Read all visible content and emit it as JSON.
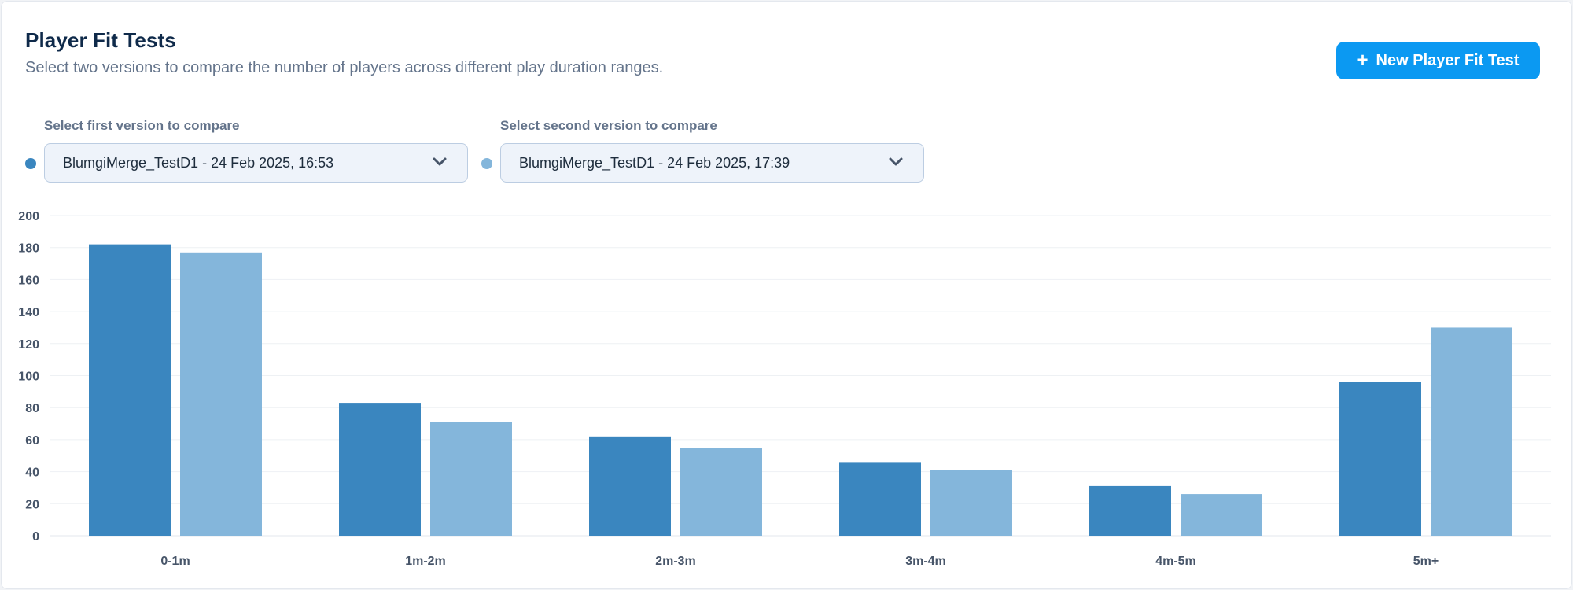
{
  "header": {
    "title": "Player Fit Tests",
    "subtitle": "Select two versions to compare the number of players across different play duration ranges.",
    "new_button_label": "New Player Fit Test",
    "new_button_icon": "plus-icon"
  },
  "selectors": {
    "first": {
      "label": "Select first version to compare",
      "value": "BlumgiMerge_TestD1 - 24 Feb 2025, 16:53",
      "color": "#3a86bf"
    },
    "second": {
      "label": "Select second version to compare",
      "value": "BlumgiMerge_TestD1 - 24 Feb 2025, 17:39",
      "color": "#84b6db"
    }
  },
  "colors": {
    "accent": "#0b99f2",
    "series1": "#3a86bf",
    "series2": "#84b6db"
  },
  "chart_data": {
    "type": "bar",
    "title": "",
    "xlabel": "",
    "ylabel": "",
    "categories": [
      "0-1m",
      "1m-2m",
      "2m-3m",
      "3m-4m",
      "4m-5m",
      "5m+"
    ],
    "series": [
      {
        "values": [
          182,
          83,
          62,
          46,
          31,
          96
        ],
        "color": "#3a86bf"
      },
      {
        "values": [
          177,
          71,
          55,
          41,
          26,
          130
        ],
        "color": "#84b6db"
      }
    ],
    "yticks": [
      0,
      20,
      40,
      60,
      80,
      100,
      120,
      140,
      160,
      180,
      200
    ],
    "ylim": [
      0,
      200
    ],
    "grid": true,
    "legend": "none"
  }
}
